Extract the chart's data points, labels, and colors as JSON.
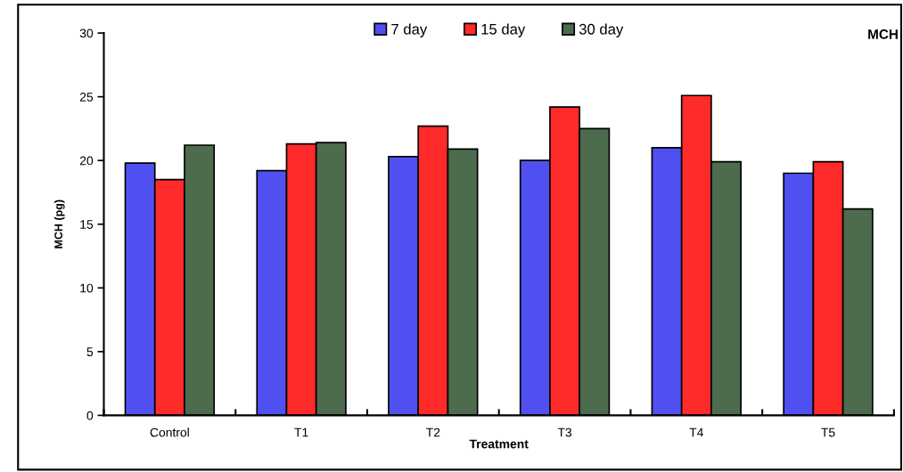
{
  "chart_data": {
    "type": "bar",
    "title": "MCH",
    "xlabel": "Treatment",
    "ylabel": "MCH (pg)",
    "categories": [
      "Control",
      "T1",
      "T2",
      "T3",
      "T4",
      "T5"
    ],
    "series": [
      {
        "name": "7 day",
        "color": "#5050f0",
        "values": [
          19.8,
          19.2,
          20.3,
          20.0,
          21.0,
          19.0
        ]
      },
      {
        "name": "15 day",
        "color": "#ff2a2a",
        "values": [
          18.5,
          21.3,
          22.7,
          24.2,
          25.1,
          19.9
        ]
      },
      {
        "name": "30 day",
        "color": "#4d6b4d",
        "values": [
          21.2,
          21.4,
          20.9,
          22.5,
          19.9,
          16.2
        ]
      }
    ],
    "ylim": [
      0,
      30
    ],
    "yticks": [
      0,
      5,
      10,
      15,
      20,
      25,
      30
    ],
    "grid": false,
    "legend": "top"
  }
}
